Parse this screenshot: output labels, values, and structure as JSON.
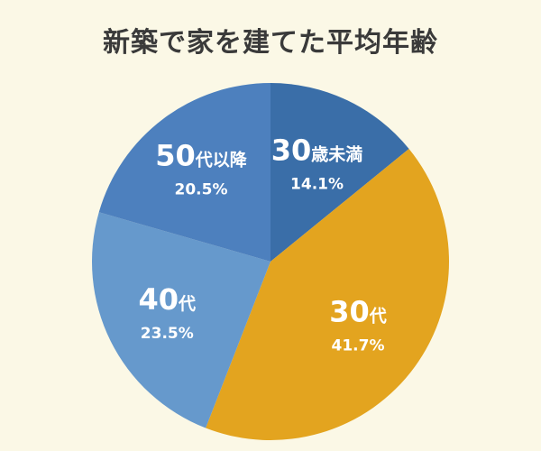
{
  "chart_data": {
    "type": "pie",
    "title": "新築で家を建てた平均年齢",
    "categories": [
      "30歳未満",
      "30代",
      "40代",
      "50代以降"
    ],
    "values": [
      14.1,
      41.7,
      23.5,
      20.5
    ],
    "value_labels": [
      "14.1%",
      "41.7%",
      "23.5%",
      "20.5%"
    ],
    "label_parts": [
      {
        "num": "30",
        "suffix": "歳未満"
      },
      {
        "num": "30",
        "suffix": "代"
      },
      {
        "num": "40",
        "suffix": "代"
      },
      {
        "num": "50",
        "suffix": "代以降"
      }
    ],
    "colors": [
      "#3a6ea8",
      "#e3a41f",
      "#6699cc",
      "#4d80be"
    ],
    "start_angle": "12 o'clock",
    "direction": "clockwise",
    "legend": "none"
  }
}
